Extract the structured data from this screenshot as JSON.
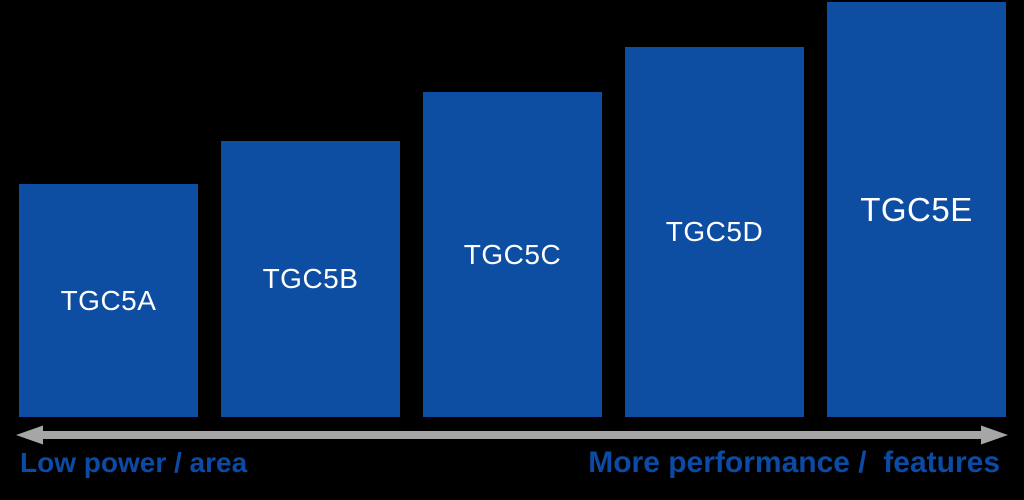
{
  "chart_data": {
    "type": "bar",
    "title": "",
    "categories": [
      "TGC5A",
      "TGC5B",
      "TGC5C",
      "TGC5D",
      "TGC5E"
    ],
    "values": [
      56.1,
      66.5,
      78.3,
      89.2,
      100
    ],
    "value_note": "relative bar heights; chart has no value axis or tick labels",
    "ylim": [
      0,
      100
    ],
    "grid": false,
    "legend": false,
    "axes_hidden": true,
    "annotations": {
      "left": "Low power / area",
      "right": "More performance /  features"
    },
    "colors": {
      "bar": "#0d4ea3",
      "bar_label": "#ffffff",
      "axis_arrow": "#a6a6a6",
      "axis_label": "#0b4ba6",
      "background": "#000000"
    }
  }
}
